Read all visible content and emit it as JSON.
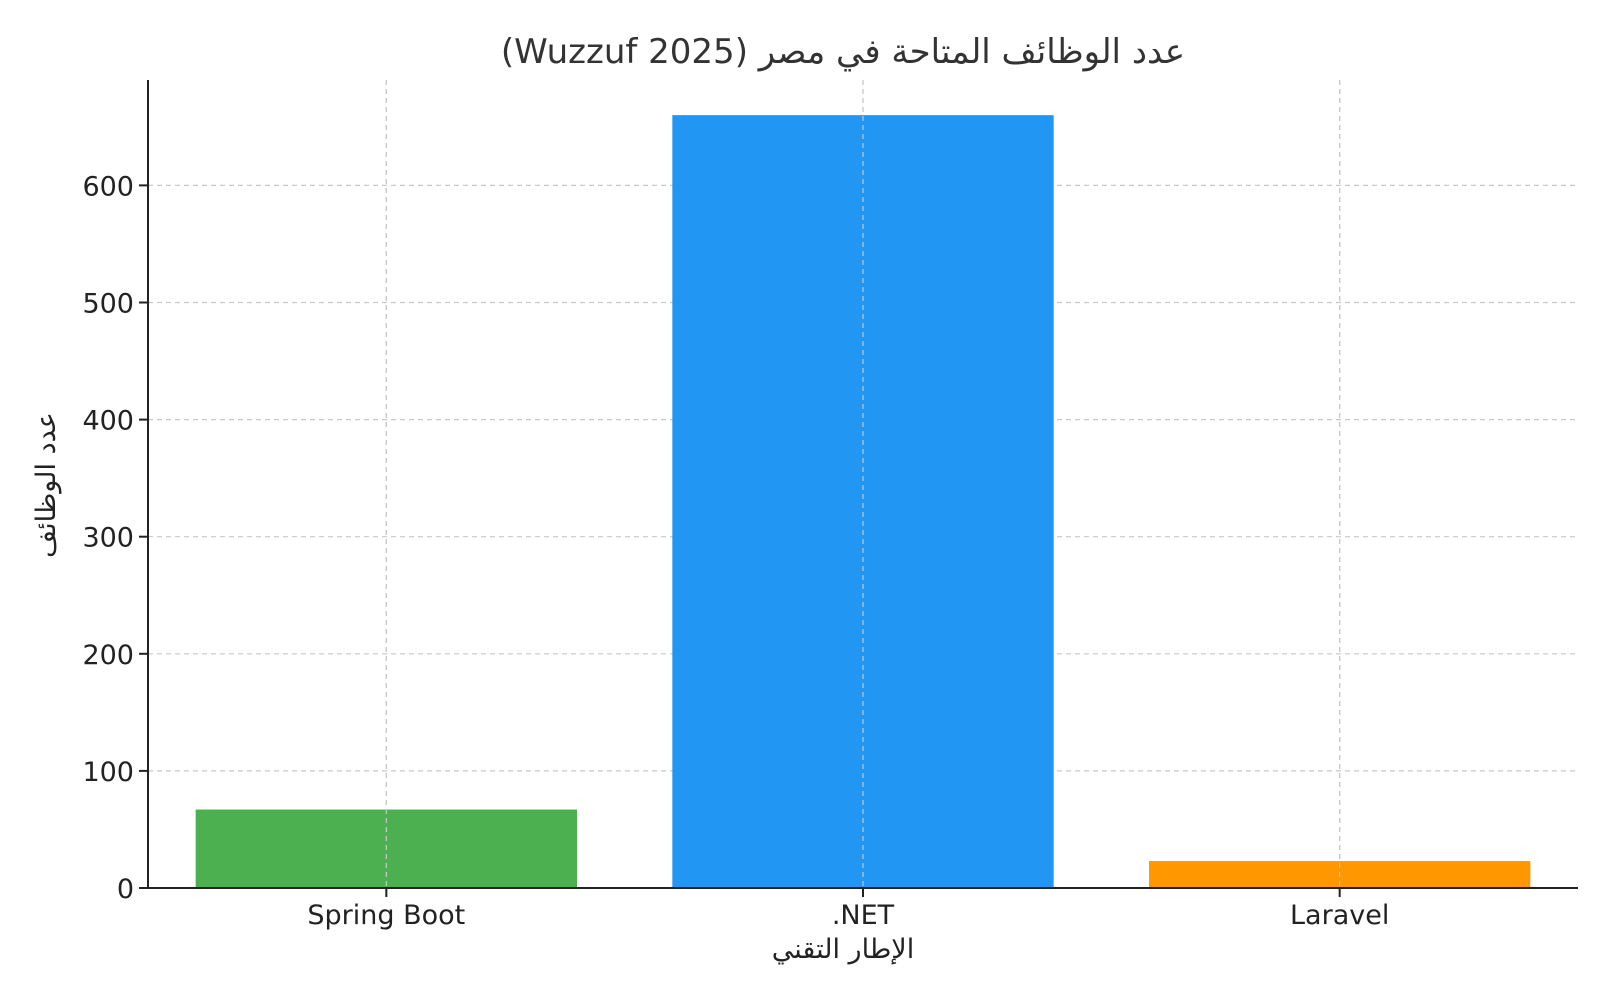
{
  "chart_data": {
    "type": "bar",
    "title": "عدد الوظائف المتاحة في مصر (Wuzzuf 2025)",
    "xlabel": "الإطار التقني",
    "ylabel": "عدد الوظائف",
    "categories": [
      "Spring Boot",
      ".NET",
      "Laravel"
    ],
    "values": [
      67,
      660,
      23
    ],
    "colors": [
      "#4caf50",
      "#2196f3",
      "#ff9800"
    ],
    "ylim": [
      0,
      690
    ],
    "yticks": [
      0,
      100,
      200,
      300,
      400,
      500,
      600
    ],
    "grid": true
  }
}
